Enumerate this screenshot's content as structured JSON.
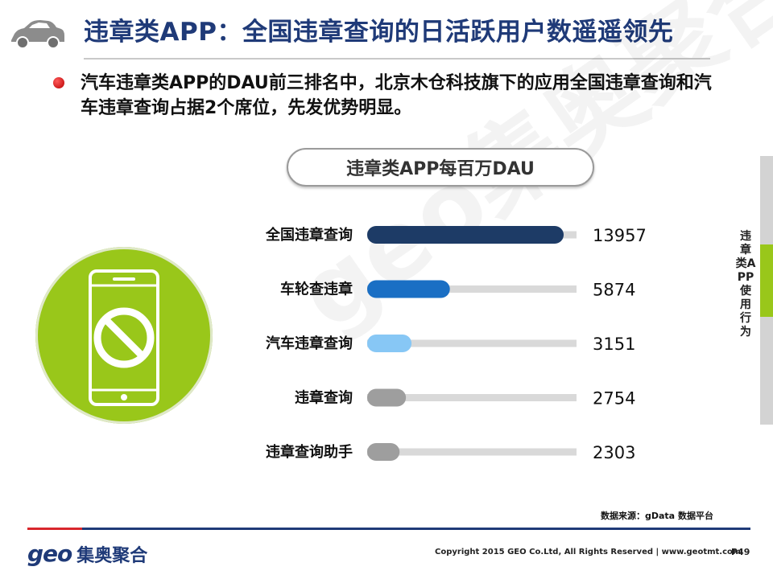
{
  "header": {
    "title": "违章类APP：全国违章查询的日活跃用户数遥遥领先",
    "icon": "car-icon"
  },
  "bullet": {
    "text": "汽车违章类APP的DAU前三排名中，北京木仓科技旗下的应用全国违章查询和汽车违章查询占据2个席位，先发优势明显。"
  },
  "watermark": "geo集奥聚合",
  "chart_data": {
    "type": "bar",
    "title": "违章类APP每百万DAU",
    "categories": [
      "全国违章查询",
      "车轮查违章",
      "汽车违章查询",
      "违章查询",
      "违章查询助手"
    ],
    "values": [
      13957,
      5874,
      3151,
      2754,
      2303
    ],
    "value_labels": [
      "13957",
      "5874",
      "3151",
      "2754",
      "2303"
    ],
    "bar_colors": [
      "#1d3b66",
      "#1a6fc4",
      "#87c7f5",
      "#9e9e9e",
      "#9e9e9e"
    ],
    "track_color": "#d9d9d9",
    "orientation": "horizontal"
  },
  "illustration": "phone-blocked-icon",
  "side": {
    "label": "违章类APP使用行为",
    "accent": "#99c71a"
  },
  "source": "数据来源：gData 数据平台",
  "footer": {
    "logo_geo": "geo",
    "logo_cn": "集奥聚合",
    "copyright": "Copyright 2015 GEO Co.Ltd, All Rights Reserved  |  www.geotmt.com",
    "page": "P49"
  }
}
